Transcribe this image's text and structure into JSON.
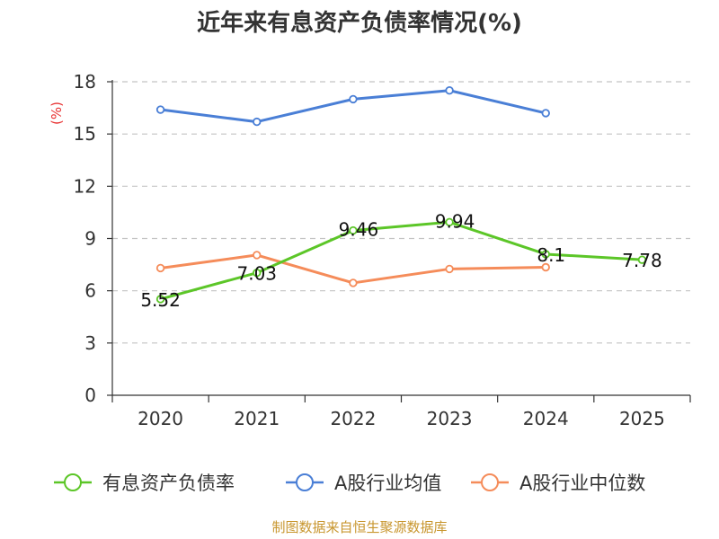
{
  "chart_data": {
    "type": "line",
    "title": "近年来有息资产负债率情况(%)",
    "ylabel": "(%)",
    "xlabel": "",
    "categories": [
      "2020",
      "2021",
      "2022",
      "2023",
      "2024",
      "2025"
    ],
    "ylim": [
      0,
      18
    ],
    "yticks": [
      0,
      3,
      6,
      9,
      12,
      15,
      18
    ],
    "grid": true,
    "legend_position": "bottom",
    "series": [
      {
        "name": "有息资产负债率",
        "color": "#5cc628",
        "values": [
          5.52,
          7.03,
          9.46,
          9.94,
          8.1,
          7.78
        ],
        "labels": [
          "5.52",
          "7.03",
          "9.46",
          "9.94",
          "8.1",
          "7.78"
        ]
      },
      {
        "name": "A股行业均值",
        "color": "#4a7fd6",
        "values": [
          16.4,
          15.7,
          17.0,
          17.5,
          16.2,
          null
        ],
        "labels": []
      },
      {
        "name": "A股行业中位数",
        "color": "#f58c5a",
        "values": [
          7.3,
          8.05,
          6.45,
          7.25,
          7.35,
          null
        ],
        "labels": []
      }
    ]
  },
  "source": "制图数据来自恒生聚源数据库"
}
